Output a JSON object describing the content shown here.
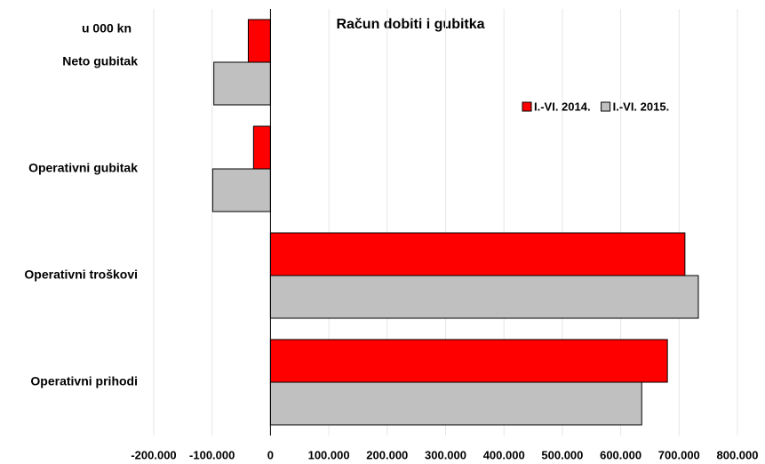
{
  "chart_data": {
    "type": "hbar",
    "title": "Račun dobiti i gubitka",
    "unit_note": "u 000 kn",
    "categories": [
      "Neto gubitak",
      "Operativni gubitak",
      "Operativni troškovi",
      "Operativni prihodi"
    ],
    "series": [
      {
        "name": "I.-VI. 2014.",
        "color": "#ff0000",
        "values": [
          -38000,
          -29000,
          710000,
          680000
        ]
      },
      {
        "name": "I.-VI. 2015.",
        "color": "#c0c0c0",
        "values": [
          -97000,
          -99000,
          733000,
          636000
        ]
      }
    ],
    "xlim": [
      -200000,
      800000
    ],
    "xticks": [
      {
        "value": -200000,
        "label": "-200.000"
      },
      {
        "value": -100000,
        "label": "-100.000"
      },
      0,
      {
        "value": 100000,
        "label": "100.000"
      },
      {
        "value": 200000,
        "label": "200.000"
      },
      {
        "value": 300000,
        "label": "300.000"
      },
      {
        "value": 400000,
        "label": "400.000"
      },
      {
        "value": 500000,
        "label": "500.000"
      },
      {
        "value": 600000,
        "label": "600.000"
      },
      {
        "value": 700000,
        "label": "700.000"
      },
      {
        "value": 800000,
        "label": "800.000"
      }
    ],
    "grid": true,
    "legend": "upper right"
  }
}
